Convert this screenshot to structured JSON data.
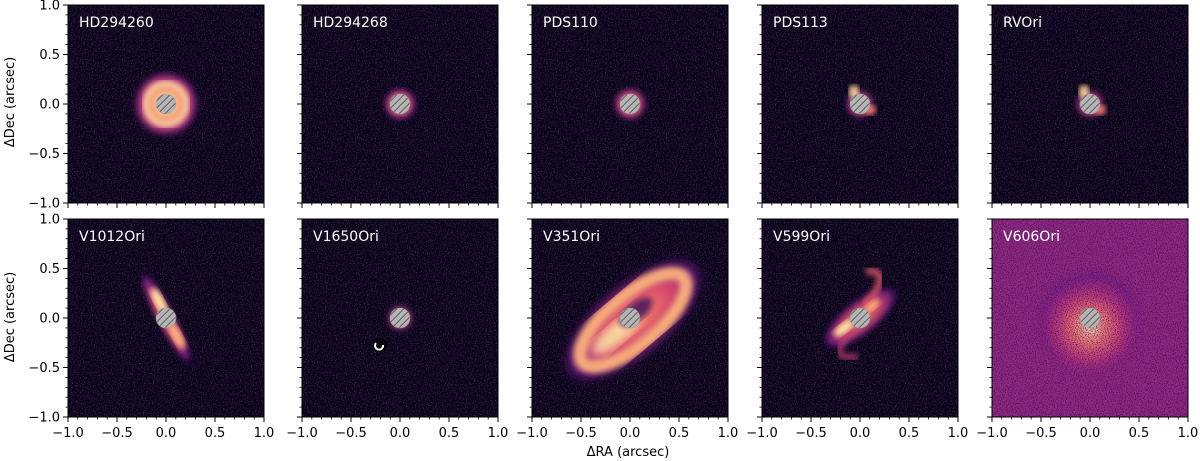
{
  "figure": {
    "xlabel": "ΔRA (arcsec)",
    "ylabel": "ΔDec (arcsec)",
    "tick_values": [
      -1.0,
      -0.5,
      0.0,
      0.5,
      1.0
    ],
    "tick_labels": [
      "−1.0",
      "−0.5",
      "0.0",
      "0.5",
      "1.0"
    ],
    "axis_range": [
      -1.0,
      1.0
    ],
    "colormap": "magma",
    "coronagraph_mask": "hatched-grey-disk"
  },
  "panels": [
    {
      "name": "HD294260",
      "morphology": "bright-ring"
    },
    {
      "name": "HD294268",
      "morphology": "compact-disk"
    },
    {
      "name": "PDS110",
      "morphology": "compact-disk"
    },
    {
      "name": "PDS113",
      "morphology": "compact-lobes"
    },
    {
      "name": "RVOri",
      "morphology": "compact-lobes"
    },
    {
      "name": "V1012Ori",
      "morphology": "edge-on-disk"
    },
    {
      "name": "V1650Ori",
      "morphology": "compact-with-companion"
    },
    {
      "name": "V351Ori",
      "morphology": "large-inclined-disk"
    },
    {
      "name": "V599Ori",
      "morphology": "spiral-inclined-disk"
    },
    {
      "name": "V606Ori",
      "morphology": "noisy-halo"
    }
  ]
}
